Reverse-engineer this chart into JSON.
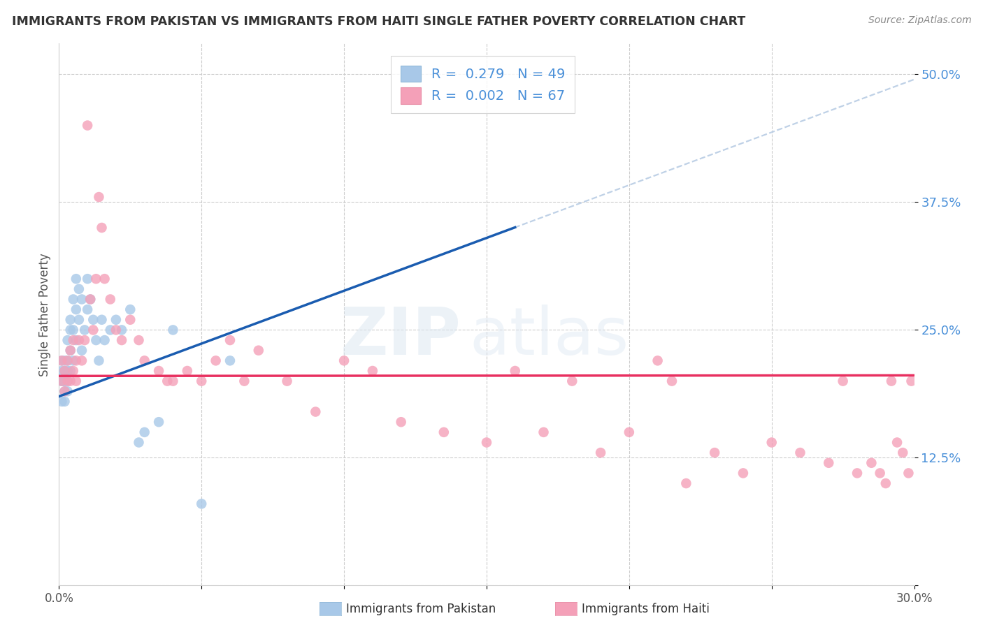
{
  "title": "IMMIGRANTS FROM PAKISTAN VS IMMIGRANTS FROM HAITI SINGLE FATHER POVERTY CORRELATION CHART",
  "source": "Source: ZipAtlas.com",
  "ylabel": "Single Father Poverty",
  "xlabel_pakistan": "Immigrants from Pakistan",
  "xlabel_haiti": "Immigrants from Haiti",
  "xlim": [
    0.0,
    0.3
  ],
  "ylim": [
    0.0,
    0.53
  ],
  "ytick_vals": [
    0.0,
    0.125,
    0.25,
    0.375,
    0.5
  ],
  "ytick_labels": [
    "",
    "12.5%",
    "25.0%",
    "37.5%",
    "50.0%"
  ],
  "xtick_vals": [
    0.0,
    0.05,
    0.1,
    0.15,
    0.2,
    0.25,
    0.3
  ],
  "xtick_labels": [
    "0.0%",
    "",
    "",
    "",
    "",
    "",
    "30.0%"
  ],
  "pakistan_color": "#a8c8e8",
  "haiti_color": "#f4a0b8",
  "trend_pakistan_color": "#1a5cb0",
  "trend_haiti_color": "#e83060",
  "trend_dashed_color": "#b8cce4",
  "r_pakistan": 0.279,
  "n_pakistan": 49,
  "r_haiti": 0.002,
  "n_haiti": 67,
  "pakistan_x": [
    0.001,
    0.001,
    0.001,
    0.001,
    0.001,
    0.002,
    0.002,
    0.002,
    0.002,
    0.002,
    0.002,
    0.003,
    0.003,
    0.003,
    0.003,
    0.003,
    0.004,
    0.004,
    0.004,
    0.004,
    0.005,
    0.005,
    0.005,
    0.006,
    0.006,
    0.006,
    0.007,
    0.007,
    0.008,
    0.008,
    0.009,
    0.01,
    0.01,
    0.011,
    0.012,
    0.013,
    0.014,
    0.015,
    0.016,
    0.018,
    0.02,
    0.022,
    0.025,
    0.028,
    0.03,
    0.035,
    0.04,
    0.05,
    0.06
  ],
  "pakistan_y": [
    0.18,
    0.2,
    0.21,
    0.22,
    0.2,
    0.19,
    0.21,
    0.2,
    0.22,
    0.2,
    0.18,
    0.22,
    0.24,
    0.21,
    0.2,
    0.19,
    0.25,
    0.26,
    0.23,
    0.21,
    0.28,
    0.25,
    0.22,
    0.3,
    0.27,
    0.24,
    0.29,
    0.26,
    0.28,
    0.23,
    0.25,
    0.3,
    0.27,
    0.28,
    0.26,
    0.24,
    0.22,
    0.26,
    0.24,
    0.25,
    0.26,
    0.25,
    0.27,
    0.14,
    0.15,
    0.16,
    0.25,
    0.08,
    0.22
  ],
  "haiti_x": [
    0.001,
    0.001,
    0.002,
    0.002,
    0.003,
    0.003,
    0.004,
    0.004,
    0.005,
    0.005,
    0.006,
    0.006,
    0.007,
    0.008,
    0.009,
    0.01,
    0.011,
    0.012,
    0.013,
    0.014,
    0.015,
    0.016,
    0.018,
    0.02,
    0.022,
    0.025,
    0.028,
    0.03,
    0.035,
    0.038,
    0.04,
    0.045,
    0.05,
    0.055,
    0.06,
    0.065,
    0.07,
    0.08,
    0.09,
    0.1,
    0.11,
    0.12,
    0.135,
    0.15,
    0.16,
    0.17,
    0.18,
    0.19,
    0.2,
    0.21,
    0.215,
    0.22,
    0.23,
    0.24,
    0.25,
    0.26,
    0.27,
    0.275,
    0.28,
    0.285,
    0.288,
    0.29,
    0.292,
    0.294,
    0.296,
    0.298,
    0.299
  ],
  "haiti_y": [
    0.2,
    0.22,
    0.19,
    0.21,
    0.2,
    0.22,
    0.23,
    0.2,
    0.24,
    0.21,
    0.22,
    0.2,
    0.24,
    0.22,
    0.24,
    0.45,
    0.28,
    0.25,
    0.3,
    0.38,
    0.35,
    0.3,
    0.28,
    0.25,
    0.24,
    0.26,
    0.24,
    0.22,
    0.21,
    0.2,
    0.2,
    0.21,
    0.2,
    0.22,
    0.24,
    0.2,
    0.23,
    0.2,
    0.17,
    0.22,
    0.21,
    0.16,
    0.15,
    0.14,
    0.21,
    0.15,
    0.2,
    0.13,
    0.15,
    0.22,
    0.2,
    0.1,
    0.13,
    0.11,
    0.14,
    0.13,
    0.12,
    0.2,
    0.11,
    0.12,
    0.11,
    0.1,
    0.2,
    0.14,
    0.13,
    0.11,
    0.2
  ],
  "watermark_zip": "ZIP",
  "watermark_atlas": "atlas",
  "background_color": "#ffffff",
  "grid_color": "#cccccc",
  "legend_label_color": "#4a90d9",
  "ytick_color": "#4a90d9",
  "title_color": "#333333",
  "source_color": "#888888"
}
